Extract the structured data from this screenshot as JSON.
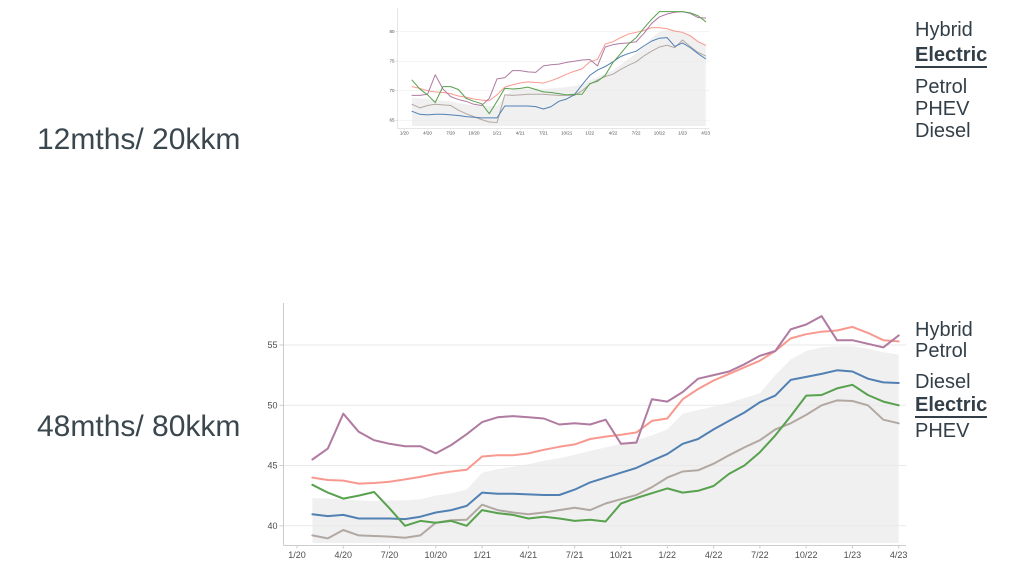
{
  "rows": [
    {
      "label": "12mths/ 20kkm"
    },
    {
      "label": "48mths/ 80kkm"
    }
  ],
  "palette": {
    "hybrid": "#b07aa1",
    "electric": "#58a14e",
    "petrol": "#f8998f",
    "diesel": "#5180b3",
    "phev": "#b2a8a2",
    "band_fill": "#ededed",
    "gridline": "#e9e9e9",
    "axis_line": "#cccccc",
    "tick_text": "#4d4d4d",
    "legend_text": "#333f48"
  },
  "chart_data": [
    {
      "type": "line",
      "title": "12mths/ 20kkm",
      "xlabel": "",
      "ylabel": "",
      "x": [
        "2/20",
        "3/20",
        "4/20",
        "5/20",
        "6/20",
        "7/20",
        "8/20",
        "9/20",
        "10/20",
        "11/20",
        "12/20",
        "1/21",
        "2/21",
        "3/21",
        "4/21",
        "5/21",
        "6/21",
        "7/21",
        "8/21",
        "9/21",
        "10/21",
        "11/21",
        "12/21",
        "1/22",
        "2/22",
        "3/22",
        "4/22",
        "5/22",
        "6/22",
        "7/22",
        "8/22",
        "9/22",
        "10/22",
        "11/22",
        "12/22",
        "1/23",
        "2/23",
        "3/23",
        "4/23"
      ],
      "x_tick_labels": [
        "1/20",
        "4/20",
        "7/20",
        "10/20",
        "1/21",
        "4/21",
        "7/21",
        "10/21",
        "1/22",
        "4/22",
        "7/22",
        "10/22",
        "1/23",
        "4/23"
      ],
      "yticks": [
        65,
        70,
        75,
        80
      ],
      "ylim": [
        63.5,
        84.2
      ],
      "grid": true,
      "legend_position": "right",
      "legend_order": [
        {
          "label": "Hybrid",
          "series": "Hybrid",
          "emphasis": false
        },
        {
          "label": "Electric",
          "series": "Electric",
          "emphasis": true
        },
        {
          "label": "Petrol",
          "series": "Petrol",
          "emphasis": false
        },
        {
          "label": "PHEV",
          "series": "PHEV",
          "emphasis": false
        },
        {
          "label": "Diesel",
          "series": "Diesel",
          "emphasis": false
        }
      ],
      "band": {
        "top": [
          68.8,
          68.7,
          68.6,
          68.4,
          68.3,
          68.2,
          67.9,
          67.7,
          67.5,
          67.4,
          67.4,
          67.4,
          68.9,
          70.3,
          70.4,
          70.4,
          70.4,
          70.3,
          70.4,
          70.5,
          70.6,
          70.8,
          71.0,
          71.8,
          72.3,
          73.0,
          73.4,
          74.4,
          75.4,
          76.3,
          77.5,
          78.9,
          80.0,
          80.3,
          80.2,
          79.9,
          79.5,
          78.6,
          77.9
        ]
      },
      "series": [
        {
          "name": "PHEV",
          "color_key": "phev",
          "values": [
            67.7,
            67.1,
            67.5,
            67.7,
            67.6,
            67.5,
            66.7,
            66.1,
            65.6,
            65.1,
            64.7,
            64.6,
            69.3,
            69.2,
            69.3,
            69.4,
            69.4,
            69.4,
            69.3,
            69.2,
            69.2,
            69.2,
            70.0,
            71.1,
            71.8,
            72.4,
            72.8,
            73.6,
            74.3,
            74.9,
            75.9,
            76.7,
            77.4,
            77.7,
            77.3,
            78.6,
            77.5,
            76.5,
            75.9
          ]
        },
        {
          "name": "Petrol",
          "color_key": "petrol",
          "values": [
            70.7,
            70.4,
            70.0,
            69.8,
            69.7,
            69.5,
            69.1,
            68.9,
            68.6,
            68.4,
            68.3,
            69.3,
            70.6,
            71.0,
            71.3,
            71.5,
            71.4,
            71.3,
            71.7,
            72.2,
            72.8,
            73.3,
            73.7,
            74.9,
            75.3,
            77.9,
            78.3,
            79.0,
            79.6,
            79.9,
            80.2,
            80.7,
            80.7,
            80.5,
            80.1,
            79.9,
            79.3,
            78.3,
            77.7
          ]
        },
        {
          "name": "Diesel",
          "color_key": "diesel",
          "values": [
            66.5,
            66.0,
            65.9,
            66.0,
            66.0,
            65.9,
            65.8,
            65.6,
            65.5,
            65.4,
            65.4,
            65.4,
            67.4,
            67.4,
            67.4,
            67.4,
            67.3,
            66.9,
            67.3,
            68.2,
            68.6,
            69.3,
            71.0,
            72.6,
            73.5,
            74.1,
            74.9,
            75.8,
            76.3,
            76.7,
            77.6,
            78.4,
            78.9,
            79.0,
            77.5,
            78.1,
            77.3,
            76.3,
            75.4
          ]
        },
        {
          "name": "Hybrid",
          "color_key": "hybrid",
          "values": [
            69.2,
            69.2,
            69.4,
            72.7,
            70.3,
            69.0,
            68.5,
            68.2,
            67.7,
            67.5,
            68.7,
            72.0,
            72.2,
            73.4,
            73.4,
            73.2,
            73.1,
            74.2,
            74.4,
            74.5,
            74.8,
            75.0,
            75.2,
            75.3,
            74.2,
            77.4,
            77.8,
            78.0,
            78.1,
            78.3,
            79.7,
            81.4,
            82.5,
            83.0,
            83.3,
            83.4,
            83.1,
            82.4,
            82.3
          ]
        },
        {
          "name": "Electric",
          "color_key": "electric",
          "values": [
            71.8,
            70.3,
            69.3,
            68.0,
            70.7,
            70.7,
            70.2,
            68.7,
            68.2,
            67.8,
            66.1,
            68.2,
            70.4,
            70.3,
            70.4,
            70.6,
            70.2,
            69.8,
            69.7,
            69.5,
            69.3,
            69.4,
            69.4,
            71.2,
            71.6,
            72.6,
            74.8,
            76.3,
            77.9,
            79.0,
            80.6,
            82.1,
            83.4,
            83.4,
            83.4,
            83.4,
            83.2,
            82.7,
            81.7
          ]
        }
      ]
    },
    {
      "type": "line",
      "title": "48mths/ 80kkm",
      "xlabel": "",
      "ylabel": "",
      "x": [
        "2/20",
        "3/20",
        "4/20",
        "5/20",
        "6/20",
        "7/20",
        "8/20",
        "9/20",
        "10/20",
        "11/20",
        "12/20",
        "1/21",
        "2/21",
        "3/21",
        "4/21",
        "5/21",
        "6/21",
        "7/21",
        "8/21",
        "9/21",
        "10/21",
        "11/21",
        "12/21",
        "1/22",
        "2/22",
        "3/22",
        "4/22",
        "5/22",
        "6/22",
        "7/22",
        "8/22",
        "9/22",
        "10/22",
        "11/22",
        "12/22",
        "1/23",
        "2/23",
        "3/23",
        "4/23"
      ],
      "x_tick_labels": [
        "1/20",
        "4/20",
        "7/20",
        "10/20",
        "1/21",
        "4/21",
        "7/21",
        "10/21",
        "1/22",
        "4/22",
        "7/22",
        "10/22",
        "1/23",
        "4/23"
      ],
      "yticks": [
        40,
        45,
        50,
        55
      ],
      "ylim": [
        38.2,
        58.4
      ],
      "grid": true,
      "legend_position": "right",
      "legend_order": [
        {
          "label": "Hybrid",
          "series": "Hybrid",
          "emphasis": false
        },
        {
          "label": "Petrol",
          "series": "Petrol",
          "emphasis": false
        },
        {
          "label": "Diesel",
          "series": "Diesel",
          "emphasis": false
        },
        {
          "label": "Electric",
          "series": "Electric",
          "emphasis": true
        },
        {
          "label": "PHEV",
          "series": "PHEV",
          "emphasis": false
        }
      ],
      "band": {
        "top": [
          42.3,
          42.25,
          42.2,
          42.1,
          42.05,
          42.1,
          42.1,
          42.2,
          42.5,
          42.7,
          43.0,
          44.4,
          44.7,
          44.9,
          45.1,
          45.4,
          45.6,
          45.9,
          46.2,
          46.5,
          46.8,
          47.1,
          47.5,
          48.0,
          49.3,
          49.6,
          49.9,
          50.2,
          50.6,
          51.0,
          52.5,
          53.8,
          54.5,
          54.8,
          54.9,
          54.9,
          54.7,
          54.4,
          54.2
        ]
      },
      "series": [
        {
          "name": "PHEV",
          "color_key": "phev",
          "values": [
            39.2,
            38.95,
            39.65,
            39.2,
            39.15,
            39.1,
            39.0,
            39.2,
            40.25,
            40.45,
            40.5,
            41.75,
            41.3,
            41.1,
            40.95,
            41.1,
            41.3,
            41.5,
            41.3,
            41.85,
            42.2,
            42.55,
            43.2,
            44.0,
            44.5,
            44.6,
            45.15,
            45.85,
            46.5,
            47.1,
            48.0,
            48.5,
            49.2,
            50.0,
            50.4,
            50.35,
            50.0,
            48.8,
            48.5
          ]
        },
        {
          "name": "Petrol",
          "color_key": "petrol",
          "values": [
            44.0,
            43.8,
            43.75,
            43.5,
            43.55,
            43.65,
            43.85,
            44.05,
            44.3,
            44.5,
            44.65,
            45.75,
            45.85,
            45.85,
            46.0,
            46.3,
            46.55,
            46.75,
            47.2,
            47.4,
            47.55,
            47.75,
            48.7,
            48.9,
            50.5,
            51.35,
            52.05,
            52.6,
            53.15,
            53.7,
            54.5,
            55.55,
            55.9,
            56.1,
            56.2,
            56.5,
            56.0,
            55.4,
            55.3
          ]
        },
        {
          "name": "Diesel",
          "color_key": "diesel",
          "values": [
            40.95,
            40.8,
            40.9,
            40.6,
            40.6,
            40.6,
            40.55,
            40.75,
            41.1,
            41.3,
            41.65,
            42.75,
            42.65,
            42.65,
            42.6,
            42.55,
            42.55,
            43.0,
            43.6,
            44.0,
            44.4,
            44.8,
            45.4,
            45.95,
            46.8,
            47.2,
            48.0,
            48.7,
            49.4,
            50.25,
            50.8,
            52.1,
            52.35,
            52.6,
            52.9,
            52.8,
            52.2,
            51.9,
            51.85
          ]
        },
        {
          "name": "Hybrid",
          "color_key": "hybrid",
          "values": [
            45.5,
            46.4,
            49.3,
            47.8,
            47.1,
            46.8,
            46.6,
            46.6,
            46.0,
            46.7,
            47.6,
            48.6,
            49.0,
            49.1,
            49.0,
            48.9,
            48.4,
            48.5,
            48.4,
            48.8,
            46.8,
            46.9,
            50.5,
            50.3,
            51.1,
            52.2,
            52.5,
            52.8,
            53.4,
            54.1,
            54.5,
            56.3,
            56.7,
            57.4,
            55.4,
            55.4,
            55.1,
            54.8,
            55.8
          ]
        },
        {
          "name": "Electric",
          "color_key": "electric",
          "values": [
            43.4,
            42.75,
            42.25,
            42.5,
            42.8,
            41.45,
            40.0,
            40.4,
            40.25,
            40.4,
            40.0,
            41.3,
            41.05,
            40.9,
            40.6,
            40.75,
            40.6,
            40.4,
            40.5,
            40.35,
            41.85,
            42.3,
            42.7,
            43.1,
            42.75,
            42.9,
            43.3,
            44.3,
            45.0,
            46.1,
            47.5,
            49.1,
            50.8,
            50.85,
            51.4,
            51.7,
            50.85,
            50.3,
            50.0
          ]
        }
      ]
    }
  ]
}
